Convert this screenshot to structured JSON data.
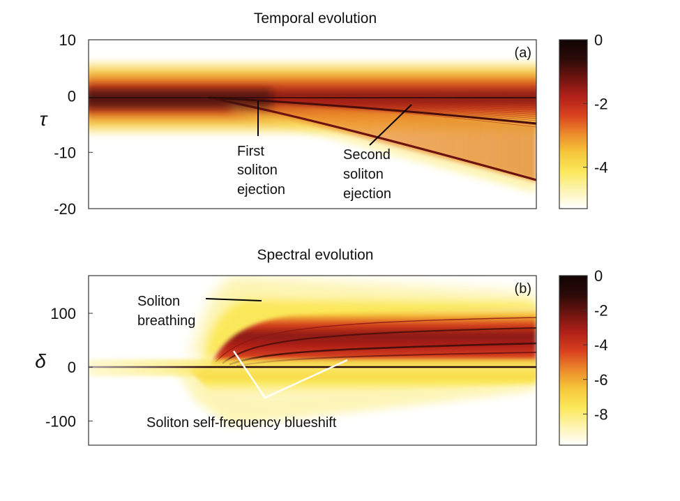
{
  "chart_data": [
    {
      "type": "heatmap",
      "title": "Temporal evolution",
      "panel_label": "(a)",
      "ylabel": "τ",
      "xlabel": "",
      "ylim": [
        -20,
        10
      ],
      "y_ticks": [
        10,
        0,
        -10,
        -20
      ],
      "x_ticks": [],
      "colorbar": {
        "min": -5.3,
        "max": 0,
        "ticks": [
          0,
          -2,
          -4
        ]
      },
      "grid": false,
      "annotations": [
        {
          "lines": [
            "First",
            "soliton",
            "ejection"
          ]
        },
        {
          "lines": [
            "Second",
            "soliton",
            "ejection"
          ]
        }
      ]
    },
    {
      "type": "heatmap",
      "title": "Spectral evolution",
      "panel_label": "(b)",
      "ylabel": "δ",
      "xlabel": "",
      "ylim": [
        -145,
        170
      ],
      "y_ticks": [
        100,
        0,
        -100
      ],
      "x_ticks": [],
      "colorbar": {
        "min": -9.8,
        "max": 0,
        "ticks": [
          0,
          -2,
          -4,
          -6,
          -8
        ]
      },
      "grid": false,
      "annotations": [
        {
          "lines": [
            "Soliton",
            "breathing"
          ]
        },
        {
          "lines": [
            "Soliton self-frequency blueshift"
          ]
        }
      ]
    }
  ],
  "colors": {
    "colormap": [
      "#ffffff",
      "#fdf4b0",
      "#fbe85a",
      "#f6c63a",
      "#ec8a2a",
      "#d8401e",
      "#b02018",
      "#6e1410",
      "#2a0a08",
      "#110404"
    ],
    "axis": "#333333",
    "annotation_dark": "#000000",
    "annotation_light": "#ffffff"
  }
}
